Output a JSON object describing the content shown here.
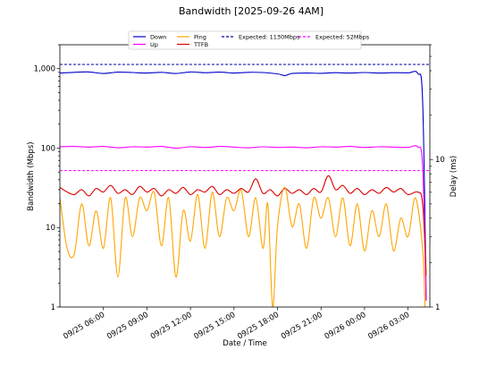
{
  "chart_data": {
    "type": "line",
    "title": "Bandwidth [2025-09-26 4AM]",
    "xlabel": "Date / Time",
    "ylabel": "Bandwidth (Mbps)",
    "y2label": "Delay (ms)",
    "yscale": "log",
    "y2scale": "log",
    "ylim": [
      1,
      2000
    ],
    "y2lim": [
      1,
      60
    ],
    "xlim": [
      "2025-09-25 03:00",
      "2025-09-26 04:30"
    ],
    "grid": false,
    "legend_position": "top-center",
    "y_ticks": [
      {
        "value": 1,
        "label": "1"
      },
      {
        "value": 10,
        "label": "10"
      },
      {
        "value": 100,
        "label": "100"
      },
      {
        "value": 1000,
        "label": "1,000"
      }
    ],
    "y2_ticks": [
      {
        "value": 1,
        "label": "1"
      },
      {
        "value": 10,
        "label": "10"
      }
    ],
    "x_ticks": [
      {
        "value": "2025-09-25 06:00",
        "label": "09/25 06:00"
      },
      {
        "value": "2025-09-25 09:00",
        "label": "09/25 09:00"
      },
      {
        "value": "2025-09-25 12:00",
        "label": "09/25 12:00"
      },
      {
        "value": "2025-09-25 15:00",
        "label": "09/25 15:00"
      },
      {
        "value": "2025-09-25 18:00",
        "label": "09/25 18:00"
      },
      {
        "value": "2025-09-25 21:00",
        "label": "09/25 21:00"
      },
      {
        "value": "2025-09-26 00:00",
        "label": "09/26 00:00"
      },
      {
        "value": "2025-09-26 03:00",
        "label": "09/26 03:00"
      }
    ],
    "legend": [
      {
        "label": "Down",
        "color": "#0000cc",
        "style": "solid"
      },
      {
        "label": "Up",
        "color": "#ff00ff",
        "style": "solid"
      },
      {
        "label": "Ping",
        "color": "#ffa500",
        "style": "solid"
      },
      {
        "label": "TTFB",
        "color": "#dd0000",
        "style": "solid"
      },
      {
        "label": "Expected: 1130Mbps",
        "color": "#0000aa",
        "style": "dashed"
      },
      {
        "label": "Expected: 52Mbps",
        "color": "#ff00ff",
        "style": "dashed"
      }
    ],
    "reference_lines": [
      {
        "label": "Expected: 1130Mbps",
        "axis": "left",
        "value": 1130,
        "color": "#0000aa"
      },
      {
        "label": "Expected: 52Mbps",
        "axis": "left",
        "value": 52,
        "color": "#ff00ff"
      }
    ],
    "series": [
      {
        "name": "Down",
        "axis": "left",
        "color": "#0000cc",
        "points": [
          [
            "2025-09-25 03:00",
            880
          ],
          [
            "2025-09-25 04:00",
            900
          ],
          [
            "2025-09-25 05:00",
            910
          ],
          [
            "2025-09-25 06:00",
            870
          ],
          [
            "2025-09-25 07:00",
            905
          ],
          [
            "2025-09-25 08:00",
            895
          ],
          [
            "2025-09-25 09:00",
            880
          ],
          [
            "2025-09-25 10:00",
            900
          ],
          [
            "2025-09-25 11:00",
            870
          ],
          [
            "2025-09-25 12:00",
            910
          ],
          [
            "2025-09-25 13:00",
            890
          ],
          [
            "2025-09-25 14:00",
            905
          ],
          [
            "2025-09-25 15:00",
            880
          ],
          [
            "2025-09-25 16:00",
            900
          ],
          [
            "2025-09-25 17:00",
            895
          ],
          [
            "2025-09-25 18:00",
            860
          ],
          [
            "2025-09-25 18:30",
            820
          ],
          [
            "2025-09-25 19:00",
            870
          ],
          [
            "2025-09-25 20:00",
            880
          ],
          [
            "2025-09-25 21:00",
            875
          ],
          [
            "2025-09-25 22:00",
            890
          ],
          [
            "2025-09-25 23:00",
            880
          ],
          [
            "2025-09-26 00:00",
            895
          ],
          [
            "2025-09-26 01:00",
            880
          ],
          [
            "2025-09-26 02:00",
            890
          ],
          [
            "2025-09-26 03:00",
            885
          ],
          [
            "2025-09-26 03:40",
            870
          ],
          [
            "2025-09-26 04:00",
            400
          ],
          [
            "2025-09-26 04:15",
            1.2
          ]
        ]
      },
      {
        "name": "Up",
        "axis": "left",
        "color": "#ff00ff",
        "points": [
          [
            "2025-09-25 03:00",
            104
          ],
          [
            "2025-09-25 04:00",
            105
          ],
          [
            "2025-09-25 05:00",
            103
          ],
          [
            "2025-09-25 06:00",
            105
          ],
          [
            "2025-09-25 07:00",
            101
          ],
          [
            "2025-09-25 08:00",
            104
          ],
          [
            "2025-09-25 09:00",
            103
          ],
          [
            "2025-09-25 10:00",
            105
          ],
          [
            "2025-09-25 11:00",
            100
          ],
          [
            "2025-09-25 12:00",
            104
          ],
          [
            "2025-09-25 13:00",
            102
          ],
          [
            "2025-09-25 14:00",
            105
          ],
          [
            "2025-09-25 15:00",
            103
          ],
          [
            "2025-09-25 16:00",
            101
          ],
          [
            "2025-09-25 17:00",
            104
          ],
          [
            "2025-09-25 18:00",
            102
          ],
          [
            "2025-09-25 19:00",
            103
          ],
          [
            "2025-09-25 20:00",
            101
          ],
          [
            "2025-09-25 21:00",
            104
          ],
          [
            "2025-09-25 22:00",
            103
          ],
          [
            "2025-09-25 23:00",
            105
          ],
          [
            "2025-09-26 00:00",
            102
          ],
          [
            "2025-09-26 01:00",
            104
          ],
          [
            "2025-09-26 02:00",
            103
          ],
          [
            "2025-09-26 03:00",
            102
          ],
          [
            "2025-09-26 03:40",
            104
          ],
          [
            "2025-09-26 04:00",
            60
          ],
          [
            "2025-09-26 04:15",
            1.2
          ]
        ]
      },
      {
        "name": "TTFB",
        "axis": "left",
        "color": "#dd0000",
        "points": [
          [
            "2025-09-25 03:00",
            32
          ],
          [
            "2025-09-25 03:30",
            28
          ],
          [
            "2025-09-25 04:00",
            26
          ],
          [
            "2025-09-25 04:30",
            30
          ],
          [
            "2025-09-25 05:00",
            25
          ],
          [
            "2025-09-25 05:30",
            31
          ],
          [
            "2025-09-25 06:00",
            28
          ],
          [
            "2025-09-25 06:30",
            34
          ],
          [
            "2025-09-25 07:00",
            27
          ],
          [
            "2025-09-25 07:30",
            30
          ],
          [
            "2025-09-25 08:00",
            26
          ],
          [
            "2025-09-25 08:30",
            33
          ],
          [
            "2025-09-25 09:00",
            28
          ],
          [
            "2025-09-25 09:30",
            31
          ],
          [
            "2025-09-25 10:00",
            25
          ],
          [
            "2025-09-25 10:30",
            30
          ],
          [
            "2025-09-25 11:00",
            27
          ],
          [
            "2025-09-25 11:30",
            32
          ],
          [
            "2025-09-25 12:00",
            26
          ],
          [
            "2025-09-25 12:30",
            30
          ],
          [
            "2025-09-25 13:00",
            28
          ],
          [
            "2025-09-25 13:30",
            33
          ],
          [
            "2025-09-25 14:00",
            26
          ],
          [
            "2025-09-25 14:30",
            30
          ],
          [
            "2025-09-25 15:00",
            27
          ],
          [
            "2025-09-25 15:30",
            31
          ],
          [
            "2025-09-25 16:00",
            28
          ],
          [
            "2025-09-25 16:30",
            41
          ],
          [
            "2025-09-25 17:00",
            27
          ],
          [
            "2025-09-25 17:30",
            30
          ],
          [
            "2025-09-25 18:00",
            25
          ],
          [
            "2025-09-25 18:30",
            31
          ],
          [
            "2025-09-25 19:00",
            27
          ],
          [
            "2025-09-25 19:30",
            30
          ],
          [
            "2025-09-25 20:00",
            26
          ],
          [
            "2025-09-25 20:30",
            31
          ],
          [
            "2025-09-25 21:00",
            28
          ],
          [
            "2025-09-25 21:30",
            45
          ],
          [
            "2025-09-25 22:00",
            30
          ],
          [
            "2025-09-25 22:30",
            34
          ],
          [
            "2025-09-25 23:00",
            27
          ],
          [
            "2025-09-25 23:30",
            31
          ],
          [
            "2025-09-26 00:00",
            26
          ],
          [
            "2025-09-26 00:30",
            30
          ],
          [
            "2025-09-26 01:00",
            27
          ],
          [
            "2025-09-26 01:30",
            32
          ],
          [
            "2025-09-26 02:00",
            28
          ],
          [
            "2025-09-26 02:30",
            31
          ],
          [
            "2025-09-26 03:00",
            26
          ],
          [
            "2025-09-26 03:40",
            28
          ],
          [
            "2025-09-26 04:00",
            20
          ],
          [
            "2025-09-26 04:15",
            2.5
          ]
        ]
      },
      {
        "name": "Ping",
        "axis": "right",
        "color": "#ffa500",
        "points": [
          [
            "2025-09-25 03:00",
            5.5
          ],
          [
            "2025-09-25 03:30",
            2.5
          ],
          [
            "2025-09-25 04:00",
            2.3
          ],
          [
            "2025-09-25 04:30",
            5.0
          ],
          [
            "2025-09-25 05:00",
            2.6
          ],
          [
            "2025-09-25 05:30",
            4.5
          ],
          [
            "2025-09-25 06:00",
            2.5
          ],
          [
            "2025-09-25 06:30",
            5.5
          ],
          [
            "2025-09-25 07:00",
            1.6
          ],
          [
            "2025-09-25 07:30",
            5.5
          ],
          [
            "2025-09-25 08:00",
            3.0
          ],
          [
            "2025-09-25 08:30",
            5.5
          ],
          [
            "2025-09-25 09:00",
            4.5
          ],
          [
            "2025-09-25 09:30",
            6.0
          ],
          [
            "2025-09-25 10:00",
            2.6
          ],
          [
            "2025-09-25 10:30",
            5.5
          ],
          [
            "2025-09-25 11:00",
            1.6
          ],
          [
            "2025-09-25 11:30",
            4.5
          ],
          [
            "2025-09-25 12:00",
            2.8
          ],
          [
            "2025-09-25 12:30",
            5.8
          ],
          [
            "2025-09-25 13:00",
            2.5
          ],
          [
            "2025-09-25 13:30",
            6.0
          ],
          [
            "2025-09-25 14:00",
            3.0
          ],
          [
            "2025-09-25 14:30",
            5.5
          ],
          [
            "2025-09-25 15:00",
            4.5
          ],
          [
            "2025-09-25 15:30",
            6.2
          ],
          [
            "2025-09-25 16:00",
            3.0
          ],
          [
            "2025-09-25 16:30",
            5.5
          ],
          [
            "2025-09-25 17:00",
            2.5
          ],
          [
            "2025-09-25 17:20",
            5.0
          ],
          [
            "2025-09-25 17:40",
            1.0
          ],
          [
            "2025-09-25 18:00",
            3.5
          ],
          [
            "2025-09-25 18:30",
            6.5
          ],
          [
            "2025-09-25 19:00",
            3.5
          ],
          [
            "2025-09-25 19:30",
            5.0
          ],
          [
            "2025-09-25 20:00",
            2.5
          ],
          [
            "2025-09-25 20:30",
            5.5
          ],
          [
            "2025-09-25 21:00",
            4.0
          ],
          [
            "2025-09-25 21:30",
            5.5
          ],
          [
            "2025-09-25 22:00",
            3.0
          ],
          [
            "2025-09-25 22:30",
            5.5
          ],
          [
            "2025-09-25 23:00",
            2.6
          ],
          [
            "2025-09-25 23:30",
            5.0
          ],
          [
            "2025-09-26 00:00",
            2.4
          ],
          [
            "2025-09-26 00:30",
            4.5
          ],
          [
            "2025-09-26 01:00",
            3.0
          ],
          [
            "2025-09-26 01:30",
            5.0
          ],
          [
            "2025-09-26 02:00",
            2.4
          ],
          [
            "2025-09-26 02:30",
            4.0
          ],
          [
            "2025-09-26 03:00",
            3.0
          ],
          [
            "2025-09-26 03:30",
            5.5
          ],
          [
            "2025-09-26 04:00",
            2.5
          ],
          [
            "2025-09-26 04:10",
            1.0
          ]
        ]
      }
    ]
  }
}
